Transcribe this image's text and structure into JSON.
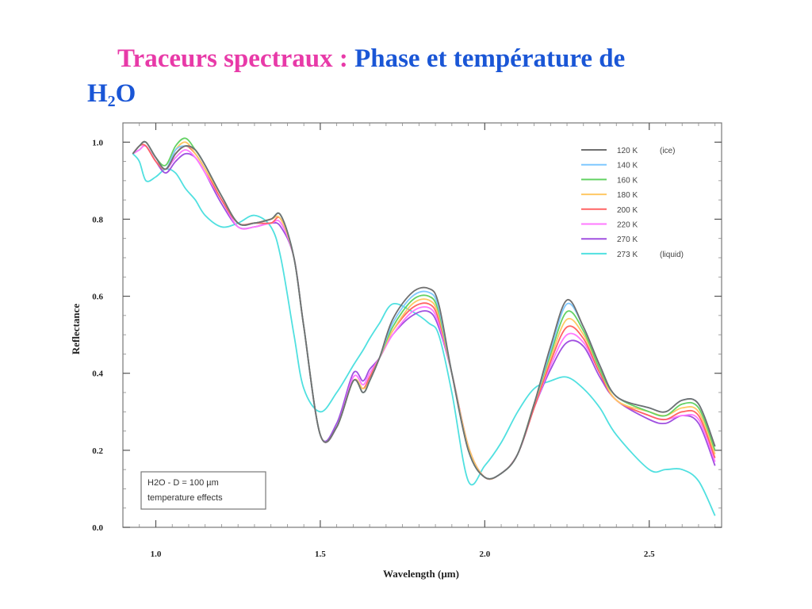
{
  "slide": {
    "title_part1": "Traceurs spectraux :",
    "title_part2": "Phase et température de",
    "title_h": "H",
    "title_sub": "2",
    "title_o": "O"
  },
  "chart_data": {
    "type": "line",
    "xlabel": "Wavelength (µm)",
    "ylabel": "Reflectance",
    "xlim": [
      0.9,
      2.72
    ],
    "ylim": [
      0.0,
      1.05
    ],
    "xticks": [
      {
        "value": 1.0,
        "label": "1.0"
      },
      {
        "value": 1.5,
        "label": "1.5"
      },
      {
        "value": 2.0,
        "label": "2.0"
      },
      {
        "value": 2.5,
        "label": "2.5"
      }
    ],
    "yticks": [
      {
        "value": 0.0,
        "label": "0.0"
      },
      {
        "value": 0.2,
        "label": "0.2"
      },
      {
        "value": 0.4,
        "label": "0.4"
      },
      {
        "value": 0.6,
        "label": "0.6"
      },
      {
        "value": 0.8,
        "label": "0.8"
      },
      {
        "value": 1.0,
        "label": "1.0"
      }
    ],
    "legend_position": "top-right",
    "annotation": [
      "H2O - D = 100 µm",
      "temperature effects"
    ],
    "x": [
      0.93,
      0.95,
      0.97,
      1.0,
      1.03,
      1.06,
      1.09,
      1.12,
      1.15,
      1.2,
      1.25,
      1.3,
      1.35,
      1.38,
      1.42,
      1.45,
      1.5,
      1.55,
      1.6,
      1.63,
      1.65,
      1.68,
      1.72,
      1.78,
      1.83,
      1.86,
      1.9,
      1.95,
      2.0,
      2.05,
      2.1,
      2.15,
      2.2,
      2.25,
      2.3,
      2.35,
      2.4,
      2.5,
      2.55,
      2.6,
      2.65,
      2.7
    ],
    "series": [
      {
        "name": "120 K",
        "note": "(ice)",
        "color": "#707070",
        "values": [
          0.97,
          0.99,
          1.0,
          0.96,
          0.93,
          0.97,
          0.99,
          0.98,
          0.94,
          0.86,
          0.79,
          0.79,
          0.8,
          0.81,
          0.7,
          0.52,
          0.24,
          0.26,
          0.38,
          0.35,
          0.38,
          0.44,
          0.54,
          0.61,
          0.62,
          0.58,
          0.4,
          0.2,
          0.13,
          0.14,
          0.19,
          0.32,
          0.47,
          0.59,
          0.52,
          0.42,
          0.34,
          0.31,
          0.3,
          0.33,
          0.32,
          0.21
        ]
      },
      {
        "name": "140 K",
        "note": "",
        "color": "#7fc8ff",
        "values": [
          0.97,
          0.99,
          1.0,
          0.96,
          0.93,
          0.98,
          0.99,
          0.98,
          0.94,
          0.86,
          0.79,
          0.79,
          0.8,
          0.81,
          0.7,
          0.52,
          0.24,
          0.26,
          0.38,
          0.35,
          0.38,
          0.44,
          0.53,
          0.6,
          0.61,
          0.57,
          0.4,
          0.2,
          0.13,
          0.14,
          0.19,
          0.32,
          0.46,
          0.58,
          0.52,
          0.42,
          0.34,
          0.31,
          0.3,
          0.33,
          0.32,
          0.21
        ]
      },
      {
        "name": "160 K",
        "note": "",
        "color": "#64d264",
        "values": [
          0.97,
          0.99,
          1.0,
          0.96,
          0.94,
          0.99,
          1.01,
          0.98,
          0.94,
          0.86,
          0.79,
          0.79,
          0.8,
          0.81,
          0.7,
          0.52,
          0.24,
          0.26,
          0.38,
          0.35,
          0.38,
          0.44,
          0.52,
          0.59,
          0.6,
          0.56,
          0.4,
          0.2,
          0.13,
          0.14,
          0.19,
          0.32,
          0.45,
          0.56,
          0.51,
          0.41,
          0.34,
          0.3,
          0.29,
          0.32,
          0.31,
          0.2
        ]
      },
      {
        "name": "180 K",
        "note": "",
        "color": "#ffc864",
        "values": [
          0.97,
          0.99,
          1.0,
          0.96,
          0.93,
          0.98,
          1.0,
          0.97,
          0.93,
          0.86,
          0.79,
          0.79,
          0.8,
          0.8,
          0.7,
          0.52,
          0.24,
          0.26,
          0.38,
          0.36,
          0.38,
          0.44,
          0.51,
          0.58,
          0.59,
          0.55,
          0.4,
          0.21,
          0.13,
          0.14,
          0.19,
          0.32,
          0.44,
          0.54,
          0.5,
          0.41,
          0.33,
          0.3,
          0.29,
          0.31,
          0.3,
          0.19
        ]
      },
      {
        "name": "200 K",
        "note": "",
        "color": "#ff6464",
        "values": [
          0.97,
          0.99,
          0.99,
          0.95,
          0.93,
          0.97,
          0.99,
          0.97,
          0.93,
          0.85,
          0.79,
          0.79,
          0.79,
          0.8,
          0.7,
          0.52,
          0.24,
          0.26,
          0.38,
          0.36,
          0.39,
          0.44,
          0.51,
          0.57,
          0.58,
          0.54,
          0.4,
          0.21,
          0.13,
          0.14,
          0.19,
          0.31,
          0.43,
          0.52,
          0.49,
          0.4,
          0.33,
          0.29,
          0.28,
          0.3,
          0.29,
          0.18
        ]
      },
      {
        "name": "220 K",
        "note": "",
        "color": "#ff78ff",
        "values": [
          0.97,
          0.98,
          0.99,
          0.95,
          0.93,
          0.96,
          0.98,
          0.96,
          0.92,
          0.85,
          0.78,
          0.78,
          0.79,
          0.79,
          0.7,
          0.52,
          0.24,
          0.26,
          0.39,
          0.37,
          0.4,
          0.44,
          0.5,
          0.56,
          0.57,
          0.53,
          0.4,
          0.21,
          0.13,
          0.14,
          0.19,
          0.31,
          0.42,
          0.5,
          0.48,
          0.4,
          0.33,
          0.29,
          0.28,
          0.29,
          0.28,
          0.17
        ]
      },
      {
        "name": "270 K",
        "note": "",
        "color": "#a050e0",
        "values": [
          0.97,
          0.98,
          0.99,
          0.95,
          0.92,
          0.95,
          0.97,
          0.96,
          0.92,
          0.84,
          0.78,
          0.78,
          0.79,
          0.78,
          0.7,
          0.52,
          0.24,
          0.27,
          0.4,
          0.38,
          0.41,
          0.44,
          0.5,
          0.55,
          0.56,
          0.52,
          0.4,
          0.21,
          0.13,
          0.14,
          0.19,
          0.31,
          0.41,
          0.48,
          0.47,
          0.39,
          0.33,
          0.28,
          0.27,
          0.29,
          0.27,
          0.16
        ]
      },
      {
        "name": "273 K",
        "note": "(liquid)",
        "color": "#50e0e0",
        "values": [
          0.97,
          0.95,
          0.9,
          0.91,
          0.93,
          0.92,
          0.88,
          0.85,
          0.81,
          0.78,
          0.79,
          0.81,
          0.78,
          0.7,
          0.5,
          0.36,
          0.3,
          0.35,
          0.42,
          0.46,
          0.49,
          0.53,
          0.58,
          0.56,
          0.53,
          0.5,
          0.35,
          0.12,
          0.16,
          0.22,
          0.3,
          0.36,
          0.38,
          0.39,
          0.36,
          0.31,
          0.24,
          0.15,
          0.15,
          0.15,
          0.12,
          0.03
        ]
      }
    ]
  }
}
